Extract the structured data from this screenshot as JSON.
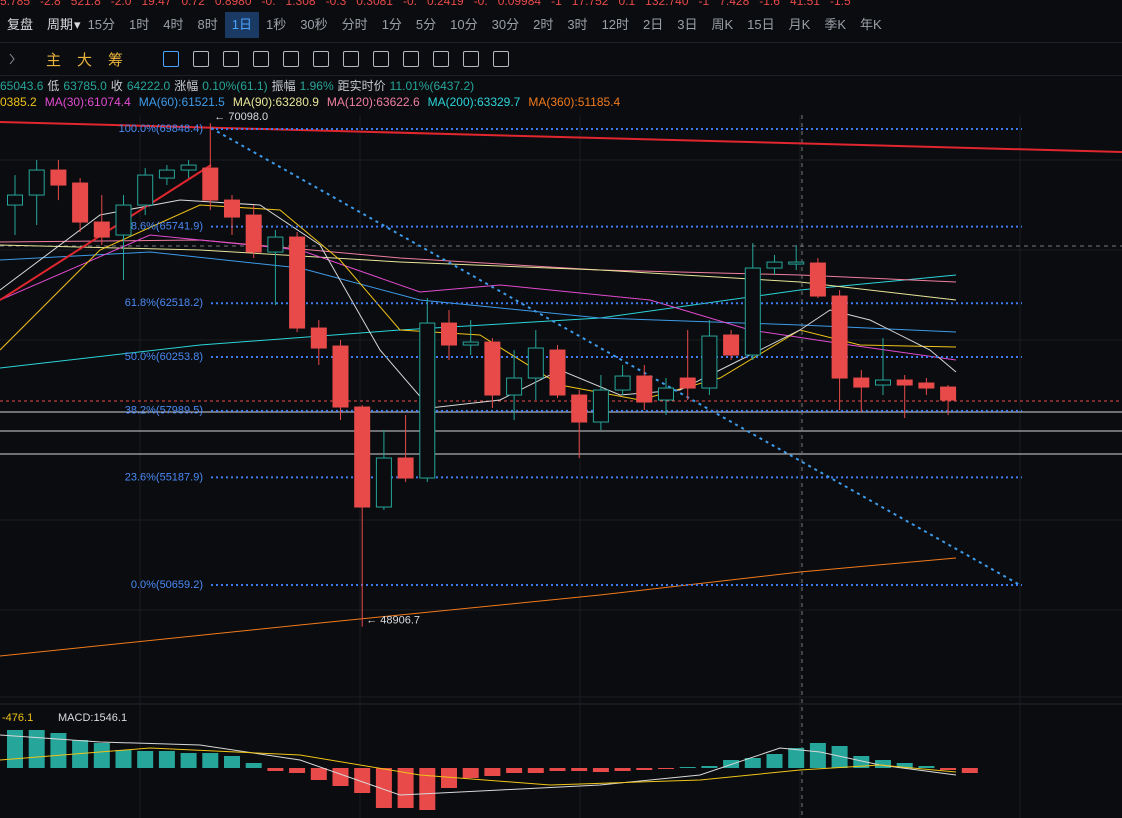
{
  "ticker_row": [
    "5.785",
    "-2.8",
    "521.8",
    "-2.0",
    "19.47",
    "0.72",
    "0.8980",
    "-0.",
    "1.308",
    "-0.3",
    "0.3081",
    "-0.",
    "0.2419",
    "-0.",
    "0.09984",
    "-1",
    "17.752",
    "0.1",
    "132.740",
    "-1",
    "7.428",
    "-1.6",
    "41.51",
    "-1.5"
  ],
  "period_bar": {
    "replay": "复盘",
    "period": "周期",
    "options": [
      "15分",
      "1时",
      "4时",
      "8时",
      "1日",
      "1秒",
      "30秒",
      "分时",
      "1分",
      "5分",
      "10分",
      "30分",
      "2时",
      "3时",
      "12时",
      "2日",
      "3日",
      "周K",
      "15日",
      "月K",
      "季K",
      "年K"
    ],
    "selected": "1日"
  },
  "tool_bar": {
    "buttons": [
      "主",
      "大",
      "筹"
    ]
  },
  "info_line": [
    "65043.6",
    "低",
    "63785.0",
    "收",
    "64222.0",
    "涨幅",
    "0.10%(61.1)",
    "振幅",
    "1.96%",
    "距实时价",
    "11.01%(6437.2)"
  ],
  "ma_legend": [
    {
      "label": "0385.2",
      "color": "#f0c419"
    },
    {
      "label": "MA(30):61074.4",
      "color": "#e14bd0"
    },
    {
      "label": "MA(60):61521.5",
      "color": "#3d9be9"
    },
    {
      "label": "MA(90):63280.9",
      "color": "#e8e59a"
    },
    {
      "label": "MA(120):63622.6",
      "color": "#f07fa0"
    },
    {
      "label": "MA(200):63329.7",
      "color": "#2bd4d9"
    },
    {
      "label": "MA(360):51185.4",
      "color": "#f07a1d"
    }
  ],
  "chart_data": {
    "type": "candlestick",
    "ylim": [
      45820,
      70440
    ],
    "up_color": "#26a69a",
    "down_color": "#e84a4a",
    "candles": [
      {
        "open": 66650,
        "high": 67912,
        "low": 65388,
        "close": 67071
      },
      {
        "open": 67071,
        "high": 68544,
        "low": 65808,
        "close": 68123
      },
      {
        "open": 68123,
        "high": 68544,
        "low": 66860,
        "close": 67492
      },
      {
        "open": 67576,
        "high": 67786,
        "low": 65514,
        "close": 65935
      },
      {
        "open": 65935,
        "high": 67071,
        "low": 64967,
        "close": 65303
      },
      {
        "open": 65388,
        "high": 67071,
        "low": 63494,
        "close": 66650
      },
      {
        "open": 66650,
        "high": 68207,
        "low": 66229,
        "close": 67912
      },
      {
        "open": 67786,
        "high": 68333,
        "low": 67492,
        "close": 68123
      },
      {
        "open": 68123,
        "high": 68544,
        "low": 67786,
        "close": 68333
      },
      {
        "open": 68207,
        "high": 70098,
        "low": 66440,
        "close": 66860
      },
      {
        "open": 66860,
        "high": 67071,
        "low": 65388,
        "close": 66145
      },
      {
        "open": 66229,
        "high": 66650,
        "low": 64420,
        "close": 64672
      },
      {
        "open": 64672,
        "high": 65598,
        "low": 62442,
        "close": 65303
      },
      {
        "open": 65303,
        "high": 65514,
        "low": 61306,
        "close": 61474
      },
      {
        "open": 61474,
        "high": 61811,
        "low": 59917,
        "close": 60632
      },
      {
        "open": 60717,
        "high": 60969,
        "low": 57603,
        "close": 58150
      },
      {
        "open": 58150,
        "high": 58234,
        "low": 48906.7,
        "close": 53942
      },
      {
        "open": 53942,
        "high": 57182,
        "low": 53816,
        "close": 56004
      },
      {
        "open": 56004,
        "high": 57813,
        "low": 54994,
        "close": 55162
      },
      {
        "open": 55162,
        "high": 62736,
        "low": 54994,
        "close": 61684
      },
      {
        "open": 61684,
        "high": 62232,
        "low": 60128,
        "close": 60759
      },
      {
        "open": 60759,
        "high": 61811,
        "low": 60338,
        "close": 60885
      },
      {
        "open": 60885,
        "high": 61053,
        "low": 58108,
        "close": 58655
      },
      {
        "open": 58655,
        "high": 60548,
        "low": 57603,
        "close": 59370
      },
      {
        "open": 59370,
        "high": 61390,
        "low": 58444,
        "close": 60632
      },
      {
        "open": 60548,
        "high": 60759,
        "low": 58528,
        "close": 58655
      },
      {
        "open": 58655,
        "high": 58865,
        "low": 56004,
        "close": 57519
      },
      {
        "open": 57519,
        "high": 59496,
        "low": 57182,
        "close": 58865
      },
      {
        "open": 58865,
        "high": 59917,
        "low": 58655,
        "close": 59454
      },
      {
        "open": 59454,
        "high": 59917,
        "low": 58024,
        "close": 58360
      },
      {
        "open": 58444,
        "high": 59370,
        "low": 57813,
        "close": 58949
      },
      {
        "open": 59370,
        "high": 61390,
        "low": 58444,
        "close": 58949
      },
      {
        "open": 58949,
        "high": 61811,
        "low": 58655,
        "close": 61137
      },
      {
        "open": 61180,
        "high": 61390,
        "low": 60128,
        "close": 60338
      },
      {
        "open": 60338,
        "high": 65051,
        "low": 60128,
        "close": 63999
      },
      {
        "open": 63999,
        "high": 64546,
        "low": 63704,
        "close": 64251
      },
      {
        "open": 64167,
        "high": 64967,
        "low": 63915,
        "close": 64251
      },
      {
        "open": 64209,
        "high": 64420,
        "low": 62736,
        "close": 62821
      },
      {
        "open": 62821,
        "high": 63073,
        "low": 58024,
        "close": 59370
      },
      {
        "open": 59370,
        "high": 59707,
        "low": 57939,
        "close": 58991
      },
      {
        "open": 59076,
        "high": 61053,
        "low": 58655,
        "close": 59286
      },
      {
        "open": 59286,
        "high": 59496,
        "low": 57687,
        "close": 59076
      },
      {
        "open": 59160,
        "high": 59370,
        "low": 58655,
        "close": 58949
      },
      {
        "open": 58991,
        "high": 59076,
        "low": 57813,
        "close": 58444
      }
    ],
    "fib_levels": [
      {
        "value": 69848.4,
        "label": "100.0%(69848.4)"
      },
      {
        "value": 65741.9,
        "label": "78.6%(65741.9)"
      },
      {
        "value": 62518.2,
        "label": "61.8%(62518.2)"
      },
      {
        "value": 60253.8,
        "label": "50.0%(60253.8)"
      },
      {
        "value": 57989.5,
        "label": "38.2%(57989.5)"
      },
      {
        "value": 55187.9,
        "label": "23.6%(55187.9)"
      },
      {
        "value": 50659.2,
        "label": "0.0%(50659.2)"
      }
    ],
    "annotations": [
      {
        "value": 70098,
        "label": "← 70098.0",
        "candle": 9
      },
      {
        "value": 48906.7,
        "label": "← 48906.7",
        "candle": 16
      }
    ]
  },
  "macd": {
    "labels": [
      "-476.1",
      "MACD:1546.1"
    ],
    "ylim": [
      -1250,
      1500
    ],
    "histogram": [
      950,
      950,
      875,
      700,
      625,
      450,
      425,
      425,
      375,
      375,
      300,
      125,
      -75,
      -125,
      -300,
      -450,
      -625,
      -1000,
      -1000,
      -1050,
      -500,
      -250,
      -200,
      -125,
      -125,
      -75,
      -75,
      -100,
      -75,
      -50,
      -25,
      25,
      50,
      200,
      250,
      350,
      500,
      625,
      550,
      300,
      200,
      125,
      50,
      -50,
      -125
    ]
  }
}
